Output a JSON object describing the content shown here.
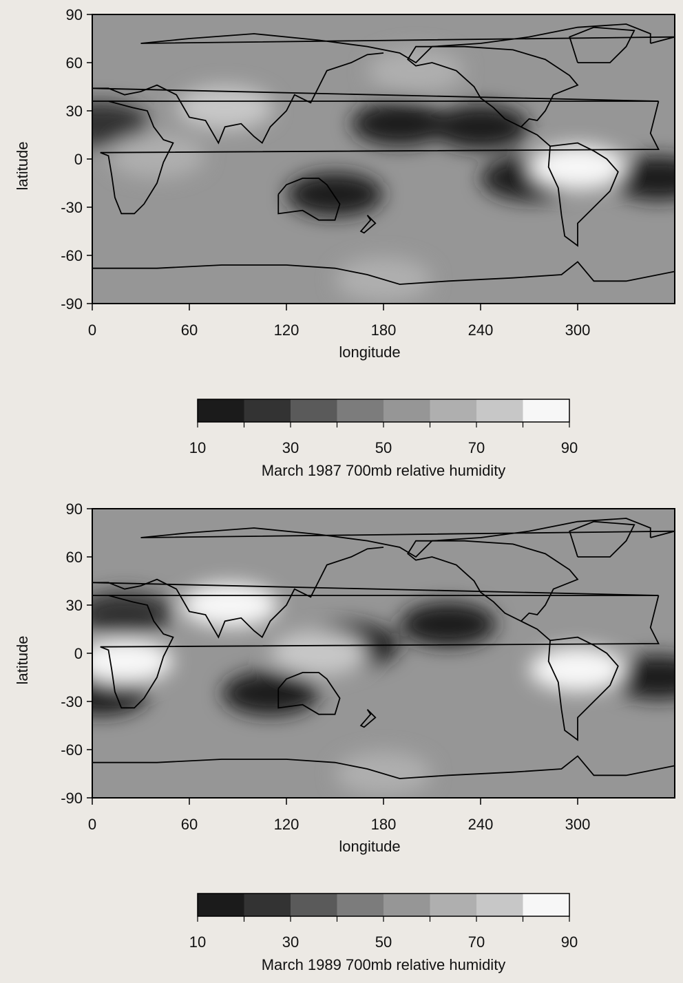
{
  "chart_data": [
    {
      "type": "heatmap",
      "title": "March 1987 700mb relative humidity",
      "xlabel": "longitude",
      "ylabel": "latitude",
      "xlim": [
        0,
        360
      ],
      "ylim": [
        -90,
        90
      ],
      "x_ticks": [
        "0",
        "60",
        "120",
        "180",
        "240",
        "300"
      ],
      "y_ticks": [
        "90",
        "60",
        "30",
        "0",
        "-30",
        "-60",
        "-90"
      ],
      "grid": false,
      "colorbar": {
        "placement": "bottom",
        "range": [
          10,
          90
        ],
        "tick_labels": [
          "10",
          "30",
          "50",
          "70",
          "90"
        ],
        "levels": [
          10,
          20,
          30,
          40,
          50,
          60,
          70,
          80,
          90
        ],
        "colors": [
          "#1b1b1b",
          "#333333",
          "#5a5a5a",
          "#7c7c7c",
          "#969696",
          "#afafaf",
          "#c7c7c7",
          "#f7f7f7"
        ]
      },
      "humidity_features": [
        {
          "lon": 240,
          "lat": 20,
          "value": 12
        },
        {
          "lon": 190,
          "lat": 22,
          "value": 14
        },
        {
          "lon": 270,
          "lat": -12,
          "value": 15
        },
        {
          "lon": 150,
          "lat": -22,
          "value": 18
        },
        {
          "lon": 350,
          "lat": -12,
          "value": 12
        },
        {
          "lon": 5,
          "lat": 22,
          "value": 20
        },
        {
          "lon": 300,
          "lat": -5,
          "value": 82
        },
        {
          "lon": 82,
          "lat": 32,
          "value": 78
        },
        {
          "lon": 40,
          "lat": 2,
          "value": 68
        },
        {
          "lon": 200,
          "lat": 55,
          "value": 60
        },
        {
          "lon": 180,
          "lat": -75,
          "value": 60
        }
      ]
    },
    {
      "type": "heatmap",
      "title": "March 1989 700mb relative humidity",
      "xlabel": "longitude",
      "ylabel": "latitude",
      "xlim": [
        0,
        360
      ],
      "ylim": [
        -90,
        90
      ],
      "x_ticks": [
        "0",
        "60",
        "120",
        "180",
        "240",
        "300"
      ],
      "y_ticks": [
        "90",
        "60",
        "30",
        "0",
        "-30",
        "-60",
        "-90"
      ],
      "grid": false,
      "colorbar": {
        "placement": "bottom",
        "range": [
          10,
          90
        ],
        "tick_labels": [
          "10",
          "30",
          "50",
          "70",
          "90"
        ],
        "levels": [
          10,
          20,
          30,
          40,
          50,
          60,
          70,
          80,
          90
        ],
        "colors": [
          "#1b1b1b",
          "#333333",
          "#5a5a5a",
          "#7c7c7c",
          "#969696",
          "#afafaf",
          "#c7c7c7",
          "#f7f7f7"
        ]
      },
      "humidity_features": [
        {
          "lon": 220,
          "lat": 18,
          "value": 10
        },
        {
          "lon": 160,
          "lat": 5,
          "value": 18
        },
        {
          "lon": 110,
          "lat": -25,
          "value": 16
        },
        {
          "lon": 350,
          "lat": -15,
          "value": 12
        },
        {
          "lon": 5,
          "lat": -25,
          "value": 15
        },
        {
          "lon": 20,
          "lat": 25,
          "value": 20
        },
        {
          "lon": 20,
          "lat": -5,
          "value": 85
        },
        {
          "lon": 300,
          "lat": -10,
          "value": 85
        },
        {
          "lon": 85,
          "lat": 30,
          "value": 80
        },
        {
          "lon": 140,
          "lat": 0,
          "value": 75
        },
        {
          "lon": 180,
          "lat": -75,
          "value": 62
        }
      ]
    }
  ]
}
